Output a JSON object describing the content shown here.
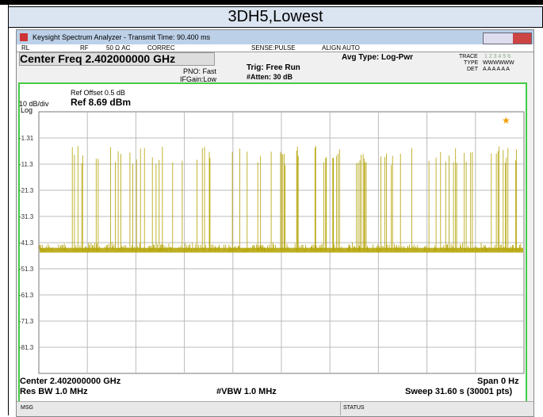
{
  "header": {
    "title": "3DH5,Lowest"
  },
  "window": {
    "title": "Keysight Spectrum Analyzer - Transmit Time: 90.400 ms",
    "status_row": [
      "RL",
      "RF",
      "50 Ω  AC",
      "CORREC",
      "SENSE:PULSE",
      "ALIGN AUTO"
    ]
  },
  "settings": {
    "center_freq": "Center Freq 2.402000000 GHz",
    "pno": "PNO: Fast",
    "ifgain": "IFGain:Low",
    "trig": "Trig: Free Run",
    "atten": "#Atten: 30 dB",
    "avg_type": "Avg Type: Log-Pwr",
    "trace_label": "TRACE",
    "trace_nums": "1 2 3 4 5 6",
    "type_label": "TYPE",
    "type_val": "WWWWWW",
    "det_label": "DET",
    "det_val": "A A A A A A"
  },
  "display": {
    "ref_offset": "Ref Offset 0.5 dB",
    "scale": "10 dB/div",
    "ref_level": "Ref 8.69 dBm",
    "log": "Log",
    "y_labels": [
      "-1.31",
      "-11.3",
      "-21.3",
      "-31.3",
      "-41.3",
      "-51.3",
      "-61.3",
      "-71.3",
      "-81.3"
    ]
  },
  "footer": {
    "center": "Center 2.402000000 GHz",
    "span": "Span 0 Hz",
    "res_bw": "Res BW 1.0 MHz",
    "vbw": "#VBW 1.0 MHz",
    "sweep": "Sweep  31.60 s (30001 pts)"
  },
  "status_bar": {
    "msg": "MSG",
    "status": "STATUS"
  }
}
